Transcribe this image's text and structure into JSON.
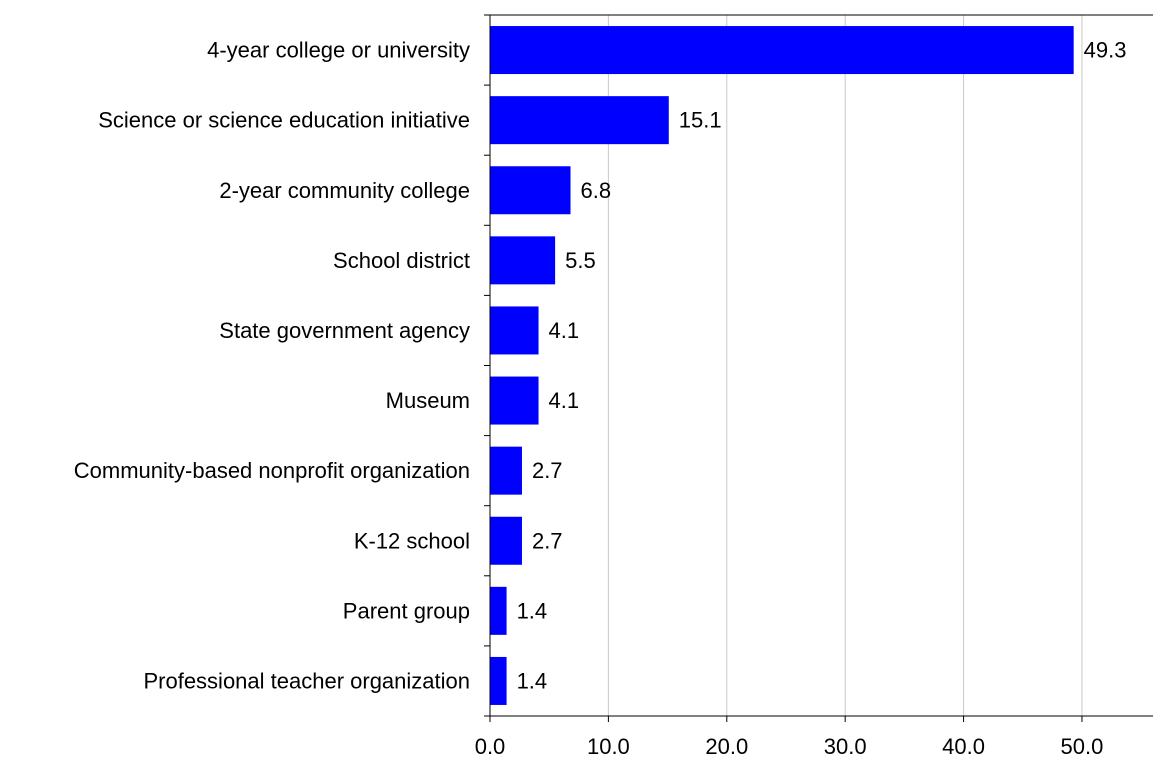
{
  "chart_data": {
    "type": "bar",
    "orientation": "horizontal",
    "categories": [
      "4-year college or university",
      "Science or science education initiative",
      "2-year community college",
      "School district",
      "State government agency",
      "Museum",
      "Community-based nonprofit organization",
      "K-12 school",
      "Parent group",
      "Professional teacher organization"
    ],
    "values": [
      49.3,
      15.1,
      6.8,
      5.5,
      4.1,
      4.1,
      2.7,
      2.7,
      1.4,
      1.4
    ],
    "value_labels": [
      "49.3",
      "15.1",
      "6.8",
      "5.5",
      "4.1",
      "4.1",
      "2.7",
      "2.7",
      "1.4",
      "1.4"
    ],
    "xlim": [
      0,
      56
    ],
    "xticks": [
      0,
      10,
      20,
      30,
      40,
      50
    ],
    "xtick_labels": [
      "0.0",
      "10.0",
      "20.0",
      "30.0",
      "40.0",
      "50.0"
    ],
    "title": "",
    "xlabel": "",
    "ylabel": "",
    "grid": "vertical",
    "legend": "none",
    "bar_color": "#0000ff",
    "grid_color": "#c8c8c8",
    "axis_color": "#000000"
  }
}
